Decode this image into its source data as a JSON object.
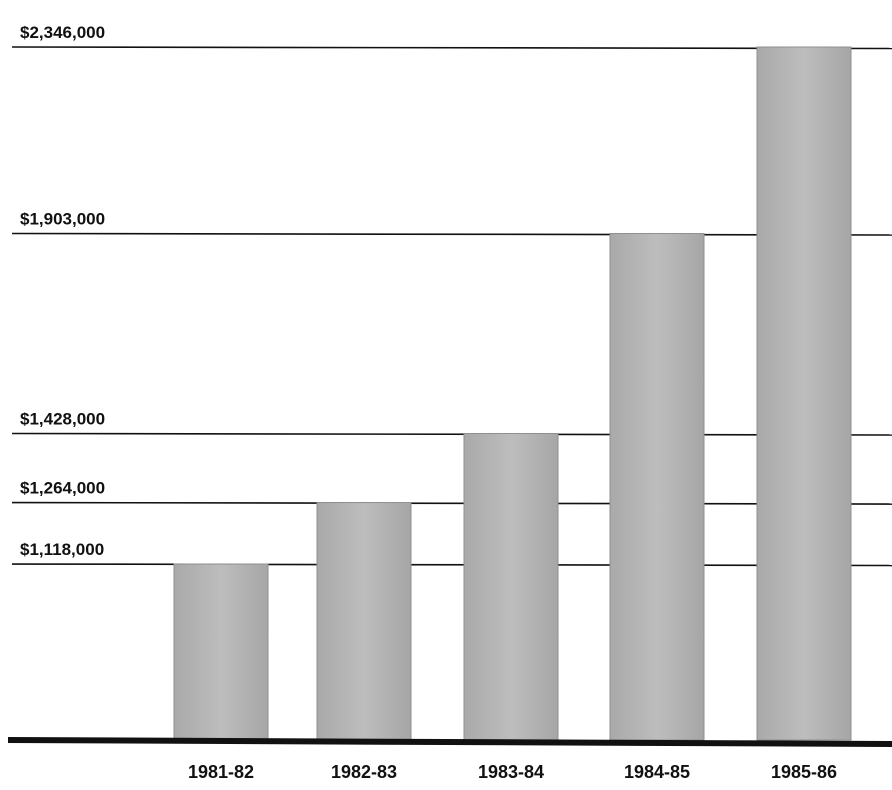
{
  "chart_data": {
    "type": "bar",
    "title": "",
    "xlabel": "",
    "ylabel": "",
    "categories": [
      "1981-82",
      "1982-83",
      "1983-84",
      "1984-85",
      "1985-86"
    ],
    "values": [
      1118000,
      1264000,
      1428000,
      1903000,
      2346000
    ],
    "value_labels": [
      "$1,118,000",
      "$1,264,000",
      "$1,428,000",
      "$1,903,000",
      "$2,346,000"
    ],
    "ylim": [
      700000,
      2346000
    ],
    "grid": false,
    "legend": "none",
    "colors": {
      "bar": "#b5b5b5",
      "bar_edge": "#8f8f8f",
      "line": "#111111",
      "baseline": "#111111"
    }
  }
}
